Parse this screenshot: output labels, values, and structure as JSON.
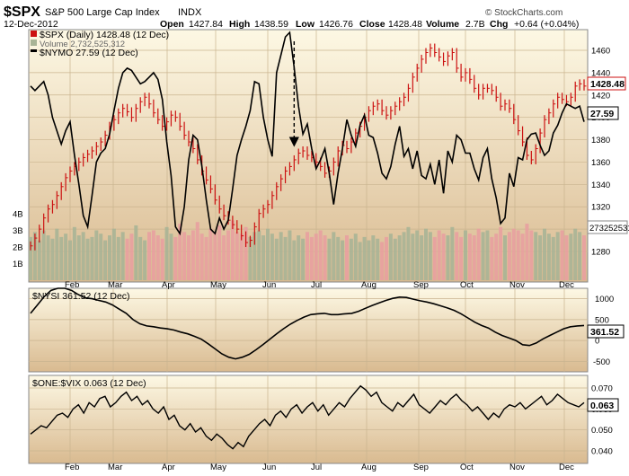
{
  "header": {
    "symbol": "$SPX",
    "name": "S&P 500 Large Cap Index",
    "exchange": "INDX",
    "date": "12-Dec-2012",
    "copyright": "© StockCharts.com",
    "open_label": "Open",
    "open": "1427.84",
    "high_label": "High",
    "high": "1438.59",
    "low_label": "Low",
    "low": "1426.76",
    "close_label": "Close",
    "close": "1428.48",
    "volume_label": "Volume",
    "volume": "2.7B",
    "chg_label": "Chg",
    "chg": "+0.64 (+0.04%)"
  },
  "colors": {
    "price": "#cc1111",
    "nymo": "#000000",
    "vol_up": "#a8b496",
    "vol_down": "#e8a0a0",
    "panel_top": "#fdf8e4",
    "panel_bottom": "#d8b98f"
  },
  "chart_data": [
    {
      "type": "line",
      "panel": "main",
      "months": [
        "Feb",
        "Mar",
        "Apr",
        "May",
        "Jun",
        "Jul",
        "Aug",
        "Sep",
        "Oct",
        "Nov",
        "Dec"
      ],
      "price_ticks": [
        1280,
        1300,
        1320,
        1340,
        1360,
        1380,
        1400,
        1420,
        1440,
        1460
      ],
      "volume_ticks": [
        "1B",
        "2B",
        "3B",
        "4B"
      ],
      "legend": [
        "$SPX (Daily) 1428.48 (12 Dec)",
        "Volume 2,732,525,312",
        "$NYMO 27.59 (12 Dec)"
      ],
      "last_labels": {
        "spx": "1428.48",
        "nymo": "27.59",
        "volume": "2732525312"
      },
      "series": [
        {
          "name": "$SPX (Daily)",
          "style": "ohlc-bars",
          "values": [
            1285,
            1292,
            1300,
            1310,
            1318,
            1322,
            1330,
            1338,
            1346,
            1352,
            1356,
            1360,
            1364,
            1367,
            1370,
            1374,
            1378,
            1384,
            1392,
            1398,
            1404,
            1408,
            1405,
            1400,
            1408,
            1414,
            1418,
            1412,
            1404,
            1398,
            1392,
            1396,
            1402,
            1400,
            1392,
            1384,
            1378,
            1372,
            1362,
            1352,
            1344,
            1336,
            1326,
            1318,
            1312,
            1308,
            1304,
            1300,
            1294,
            1288,
            1290,
            1302,
            1314,
            1318,
            1322,
            1330,
            1338,
            1345,
            1352,
            1356,
            1362,
            1368,
            1370,
            1366,
            1364,
            1360,
            1356,
            1350,
            1352,
            1360,
            1370,
            1375,
            1372,
            1378,
            1386,
            1392,
            1400,
            1406,
            1410,
            1412,
            1406,
            1402,
            1406,
            1410,
            1414,
            1418,
            1426,
            1436,
            1444,
            1452,
            1458,
            1462,
            1458,
            1454,
            1450,
            1455,
            1458,
            1444,
            1436,
            1440,
            1434,
            1426,
            1420,
            1426,
            1426,
            1424,
            1418,
            1410,
            1412,
            1408,
            1398,
            1388,
            1378,
            1366,
            1362,
            1372,
            1386,
            1398,
            1404,
            1412,
            1418,
            1416,
            1414,
            1418,
            1428,
            1430,
            1428
          ]
        },
        {
          "name": "$NYMO",
          "style": "line",
          "values": [
            1428,
            1424,
            1428,
            1432,
            1420,
            1400,
            1388,
            1376,
            1388,
            1396,
            1366,
            1340,
            1312,
            1302,
            1330,
            1360,
            1368,
            1372,
            1385,
            1406,
            1426,
            1440,
            1444,
            1442,
            1436,
            1430,
            1432,
            1436,
            1440,
            1434,
            1416,
            1378,
            1348,
            1302,
            1296,
            1320,
            1362,
            1384,
            1380,
            1356,
            1326,
            1300,
            1296,
            1310,
            1300,
            1308,
            1336,
            1366,
            1380,
            1392,
            1406,
            1432,
            1430,
            1400,
            1380,
            1365,
            1440,
            1456,
            1472,
            1476,
            1445,
            1410,
            1385,
            1394,
            1372,
            1354,
            1362,
            1372,
            1350,
            1322,
            1350,
            1372,
            1398,
            1384,
            1374,
            1393,
            1402,
            1384,
            1382,
            1368,
            1350,
            1345,
            1356,
            1376,
            1392,
            1365,
            1372,
            1354,
            1370,
            1348,
            1345,
            1358,
            1340,
            1362,
            1332,
            1370,
            1360,
            1384,
            1380,
            1368,
            1368,
            1354,
            1344,
            1364,
            1372,
            1345,
            1328,
            1305,
            1310,
            1350,
            1338,
            1364,
            1362,
            1380,
            1385,
            1386,
            1375,
            1366,
            1370,
            1386,
            1393,
            1404,
            1412,
            1410,
            1408,
            1410,
            1396
          ]
        },
        {
          "name": "Volume",
          "style": "bars",
          "values": [
            2.6,
            2.9,
            2.4,
            3.0,
            2.7,
            2.5,
            3.1,
            2.6,
            2.8,
            2.4,
            3.2,
            2.7,
            2.9,
            2.5,
            2.6,
            3.0,
            2.8,
            2.4,
            2.7,
            3.1,
            2.6,
            2.9,
            2.5,
            2.8,
            3.3,
            2.6,
            2.4,
            2.9,
            3.0,
            2.7,
            2.5,
            3.2,
            2.8,
            2.6,
            3.4,
            2.9,
            2.7,
            3.0,
            3.5,
            2.8,
            2.6,
            3.1,
            2.9,
            3.3,
            2.7,
            3.0,
            3.6,
            2.9,
            2.8,
            3.2,
            2.6,
            2.9,
            3.0,
            2.7,
            3.1,
            2.8,
            2.5,
            2.9,
            2.6,
            3.0,
            2.4,
            2.7,
            2.5,
            2.9,
            2.6,
            2.8,
            3.0,
            2.7,
            2.5,
            2.9,
            2.6,
            2.4,
            2.7,
            2.5,
            2.8,
            2.3,
            2.6,
            2.4,
            2.7,
            2.5,
            2.3,
            2.6,
            2.8,
            2.5,
            2.7,
            2.9,
            3.2,
            2.8,
            3.0,
            2.7,
            3.1,
            2.9,
            2.6,
            3.0,
            2.8,
            2.7,
            3.2,
            2.9,
            2.6,
            3.0,
            2.8,
            2.7,
            3.1,
            2.9,
            3.0,
            2.6,
            2.8,
            3.2,
            2.7,
            2.9,
            3.1,
            3.0,
            2.8,
            3.4,
            3.0,
            2.9,
            2.7,
            3.1,
            2.8,
            2.6,
            2.9,
            3.0,
            2.7,
            2.8,
            3.1,
            2.9,
            2.7
          ]
        }
      ],
      "annotation": {
        "type": "dashed-arrow",
        "at_index": 60
      }
    },
    {
      "type": "line",
      "panel": "nysi",
      "legend": "$NYSI 361.52 (12 Dec)",
      "last_label": "361.52",
      "ticks": [
        -500,
        0,
        500,
        1000
      ],
      "ylim": [
        -750,
        1250
      ],
      "series": [
        {
          "name": "$NYSI",
          "values": [
            650,
            850,
            1050,
            1200,
            1250,
            1250,
            1200,
            1100,
            1020,
            1000,
            960,
            920,
            850,
            750,
            650,
            500,
            400,
            350,
            330,
            300,
            280,
            250,
            200,
            160,
            100,
            30,
            -80,
            -200,
            -320,
            -400,
            -440,
            -400,
            -330,
            -220,
            -100,
            30,
            160,
            280,
            390,
            480,
            560,
            620,
            640,
            650,
            620,
            620,
            640,
            650,
            700,
            770,
            840,
            900,
            960,
            1010,
            1040,
            1030,
            990,
            950,
            920,
            880,
            830,
            780,
            720,
            640,
            540,
            440,
            360,
            300,
            200,
            120,
            60,
            0,
            -100,
            -120,
            -60,
            40,
            120,
            200,
            280,
            330,
            350,
            360
          ]
        }
      ]
    },
    {
      "type": "line",
      "panel": "one-vix",
      "legend": "$ONE:$VIX 0.063 (12 Dec)",
      "last_label": "0.063",
      "ticks": [
        0.04,
        0.05,
        0.06,
        0.07
      ],
      "ylim": [
        0.034,
        0.076
      ],
      "series": [
        {
          "name": "$ONE:$VIX",
          "values": [
            0.048,
            0.05,
            0.052,
            0.051,
            0.054,
            0.057,
            0.058,
            0.056,
            0.06,
            0.062,
            0.058,
            0.063,
            0.061,
            0.065,
            0.066,
            0.061,
            0.063,
            0.066,
            0.068,
            0.064,
            0.066,
            0.062,
            0.064,
            0.06,
            0.058,
            0.061,
            0.055,
            0.057,
            0.052,
            0.05,
            0.053,
            0.049,
            0.051,
            0.047,
            0.045,
            0.048,
            0.046,
            0.043,
            0.041,
            0.044,
            0.042,
            0.047,
            0.05,
            0.053,
            0.055,
            0.052,
            0.057,
            0.059,
            0.056,
            0.06,
            0.062,
            0.058,
            0.061,
            0.063,
            0.059,
            0.062,
            0.057,
            0.06,
            0.063,
            0.061,
            0.065,
            0.068,
            0.071,
            0.069,
            0.066,
            0.068,
            0.063,
            0.061,
            0.059,
            0.063,
            0.061,
            0.064,
            0.067,
            0.062,
            0.06,
            0.058,
            0.061,
            0.064,
            0.062,
            0.065,
            0.067,
            0.064,
            0.062,
            0.059,
            0.061,
            0.058,
            0.055,
            0.058,
            0.056,
            0.06,
            0.062,
            0.061,
            0.063,
            0.06,
            0.062,
            0.064,
            0.066,
            0.062,
            0.064,
            0.067,
            0.065,
            0.063,
            0.062,
            0.061,
            0.063
          ]
        }
      ]
    }
  ]
}
